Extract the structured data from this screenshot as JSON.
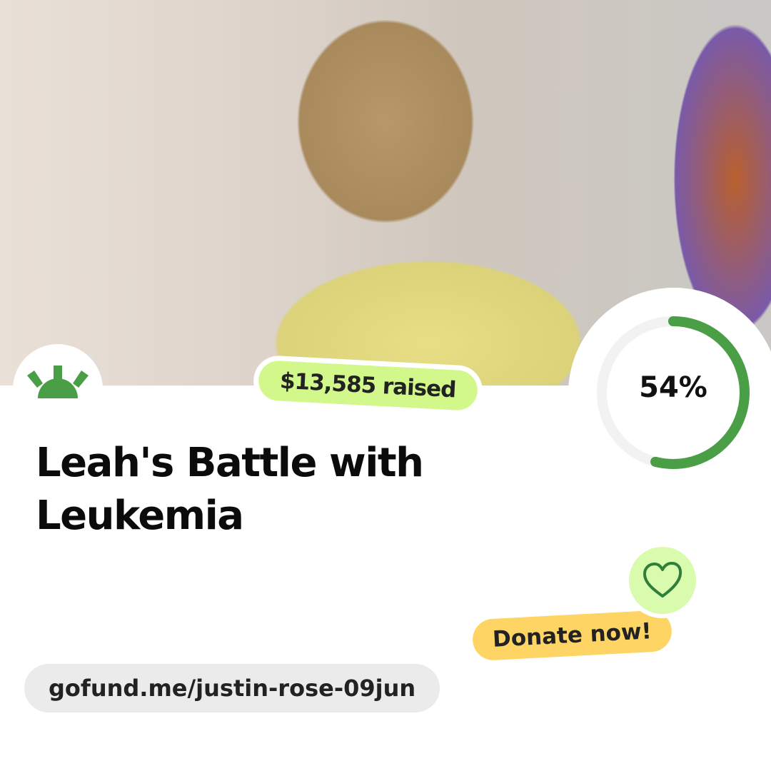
{
  "campaign": {
    "title": "Leah's Battle with Leukemia",
    "raised_label": "$13,585 raised",
    "progress_percent": 54,
    "progress_label": "54%",
    "url": "gofund.me/justin-rose-09jun"
  },
  "cta": {
    "donate_label": "Donate now!",
    "icon": "heart-icon"
  },
  "colors": {
    "brand_green": "#4a9e45",
    "raised_bg": "#d2f88c",
    "donate_bg": "#fed564",
    "heart_bg": "#d9fbad",
    "ring_track": "#f2f2f2"
  }
}
